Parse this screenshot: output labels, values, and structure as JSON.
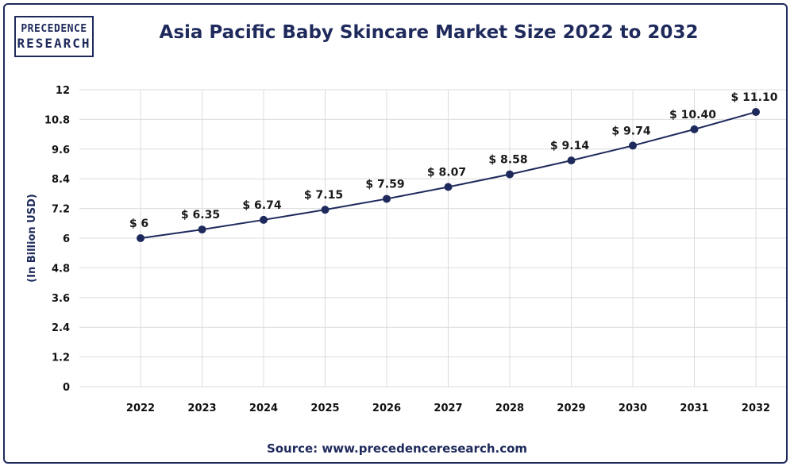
{
  "logo": {
    "line1": "PRECEDENCE",
    "line2": "RESEARCH"
  },
  "title": "Asia Pacific Baby Skincare Market Size 2022 to 2032",
  "source": "Source: www.precedenceresearch.com",
  "colors": {
    "navy": "#1f2a5c",
    "line": "#1f2a5c",
    "grid": "#dcdcdc"
  },
  "chart_data": {
    "type": "line",
    "title": "Asia Pacific Baby Skincare Market Size 2022 to 2032",
    "xlabel": "",
    "ylabel": "(In Billion USD)",
    "categories": [
      "2022",
      "2023",
      "2024",
      "2025",
      "2026",
      "2027",
      "2028",
      "2029",
      "2030",
      "2031",
      "2032"
    ],
    "values": [
      6,
      6.35,
      6.74,
      7.15,
      7.59,
      8.07,
      8.58,
      9.14,
      9.74,
      10.4,
      11.1
    ],
    "data_labels": [
      "$ 6",
      "$ 6.35",
      "$ 6.74",
      "$ 7.15",
      "$ 7.59",
      "$ 8.07",
      "$ 8.58",
      "$ 9.14",
      "$ 9.74",
      "$ 10.40",
      "$ 11.10"
    ],
    "yticks": [
      "0",
      "1.2",
      "2.4",
      "3.6",
      "4.8",
      "6",
      "7.2",
      "8.4",
      "9.6",
      "10.8",
      "12"
    ],
    "ylim": [
      0,
      12
    ],
    "grid": true,
    "legend": "none"
  }
}
